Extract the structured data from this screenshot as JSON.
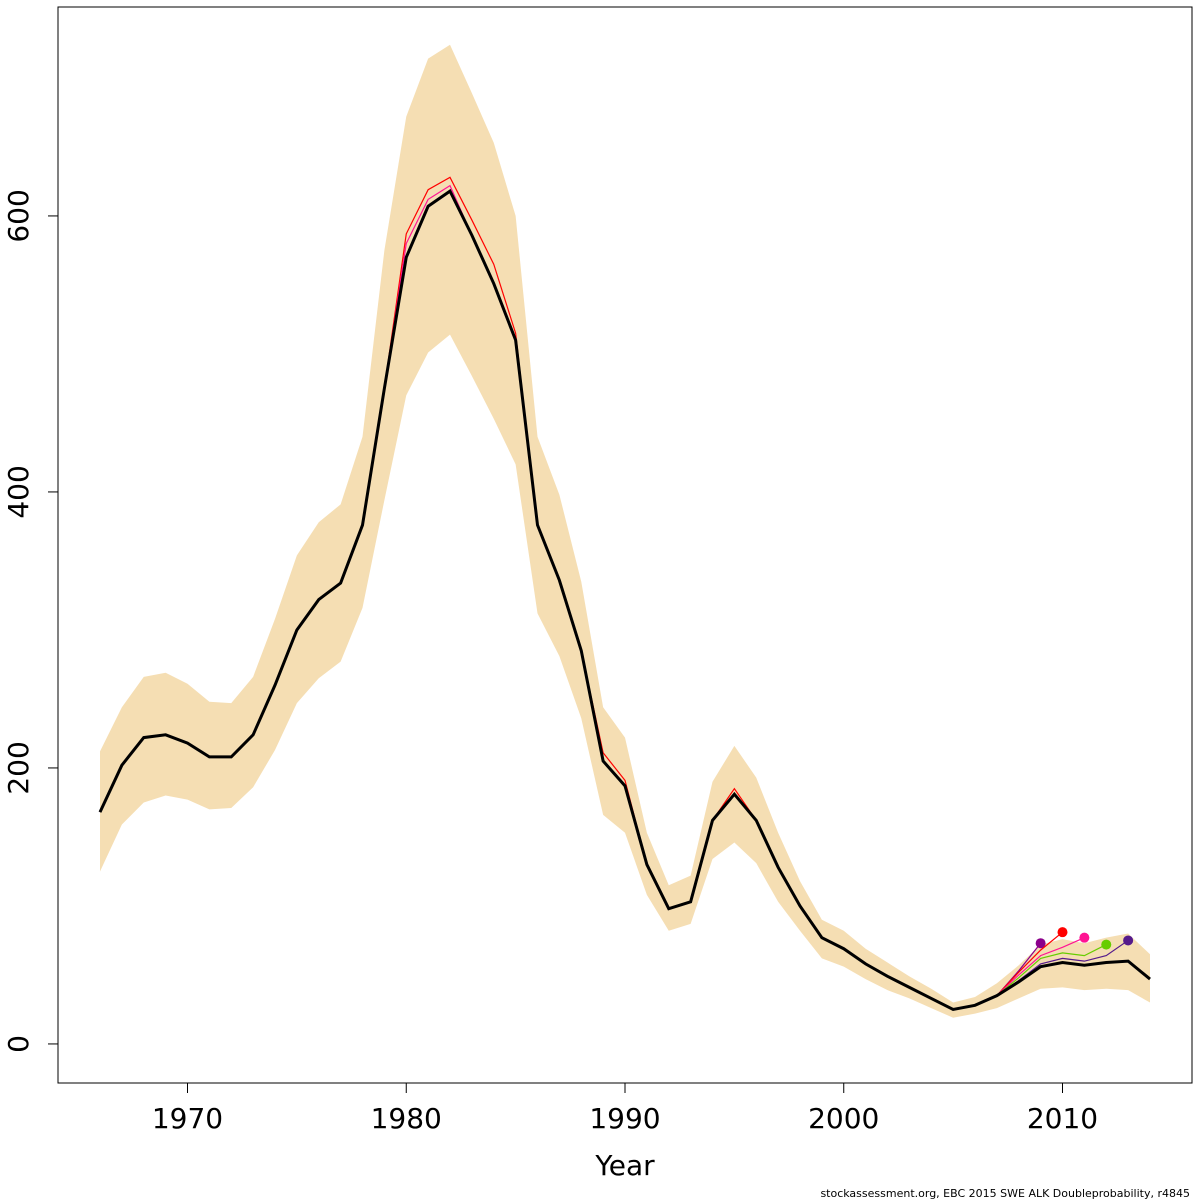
{
  "chart_data": {
    "type": "line",
    "xlabel": "Year",
    "footnote": "stockassessment.org, EBC 2015 SWE ALK Doubleprobability, r4845",
    "xlim": [
      1964.08,
      2015.92
    ],
    "ylim": [
      -28.3,
      751.4
    ],
    "xticks": [
      1970,
      1980,
      1990,
      2000,
      2010
    ],
    "yticks": [
      0,
      200,
      400,
      600
    ],
    "x": [
      1966,
      1967,
      1968,
      1969,
      1970,
      1971,
      1972,
      1973,
      1974,
      1975,
      1976,
      1977,
      1978,
      1979,
      1980,
      1981,
      1982,
      1983,
      1984,
      1985,
      1986,
      1987,
      1988,
      1989,
      1990,
      1991,
      1992,
      1993,
      1994,
      1995,
      1996,
      1997,
      1998,
      1999,
      2000,
      2001,
      2002,
      2003,
      2004,
      2005,
      2006,
      2007,
      2008,
      2009,
      2010,
      2011,
      2012,
      2013,
      2014
    ],
    "band": {
      "color": "#f5deb3",
      "upper": [
        212,
        244,
        266,
        269,
        261,
        248,
        247,
        266,
        308,
        354,
        378,
        391,
        440,
        575,
        672,
        714,
        724,
        689,
        653,
        600,
        440,
        398,
        335,
        244,
        222,
        153,
        115,
        122,
        190,
        216,
        193,
        153,
        118,
        90,
        82,
        69,
        59,
        49,
        40,
        30,
        34,
        44,
        57,
        72,
        76,
        73,
        77,
        80,
        65
      ],
      "lower": [
        125,
        159,
        175,
        180,
        177,
        170,
        171,
        186,
        213,
        247,
        265,
        277,
        316,
        394,
        470,
        501,
        514,
        484,
        453,
        420,
        312,
        281,
        236,
        166,
        153,
        108,
        82,
        87,
        134,
        146,
        131,
        103,
        82,
        62,
        56,
        47,
        39,
        33,
        26,
        19,
        22,
        26,
        33,
        40,
        41,
        39,
        40,
        39,
        30
      ]
    },
    "series": [
      {
        "color": "#8b008b",
        "values": [
          168,
          202,
          222,
          224,
          218,
          208,
          208,
          224,
          260,
          300,
          322,
          334,
          376,
          475,
          570,
          607,
          618,
          586,
          551,
          510,
          376,
          336,
          285,
          205,
          187,
          130,
          98,
          103,
          162,
          181,
          162,
          128,
          100,
          77,
          69,
          58,
          49,
          41,
          33,
          25,
          28,
          35,
          53,
          73,
          null,
          null,
          null,
          null,
          null
        ]
      },
      {
        "color": "#ff0000",
        "values": [
          168,
          202,
          222,
          224,
          218,
          208,
          208,
          224,
          260,
          300,
          322,
          334,
          376,
          475,
          587,
          619,
          628,
          597,
          565,
          515,
          376,
          336,
          285,
          211,
          191,
          130,
          98,
          103,
          162,
          185,
          162,
          128,
          100,
          77,
          69,
          58,
          49,
          41,
          33,
          25,
          28,
          35,
          52,
          68,
          81,
          null,
          null,
          null,
          null
        ]
      },
      {
        "color": "#ff1493",
        "values": [
          168,
          202,
          222,
          224,
          218,
          208,
          208,
          224,
          260,
          300,
          322,
          334,
          376,
          475,
          580,
          612,
          622,
          586,
          551,
          510,
          376,
          336,
          285,
          205,
          187,
          130,
          98,
          103,
          162,
          181,
          162,
          128,
          100,
          77,
          69,
          58,
          49,
          41,
          33,
          25,
          28,
          35,
          50,
          64,
          70,
          77,
          null,
          null,
          null
        ]
      },
      {
        "color": "#66cd00",
        "values": [
          168,
          202,
          222,
          224,
          218,
          208,
          208,
          224,
          260,
          300,
          322,
          334,
          376,
          475,
          570,
          607,
          618,
          586,
          551,
          510,
          376,
          336,
          285,
          205,
          187,
          130,
          98,
          103,
          162,
          181,
          162,
          128,
          100,
          77,
          69,
          58,
          49,
          41,
          33,
          25,
          28,
          35,
          48,
          62,
          66,
          64,
          72,
          null,
          null
        ]
      },
      {
        "color": "#551a8b",
        "values": [
          168,
          202,
          222,
          224,
          218,
          208,
          208,
          224,
          260,
          300,
          322,
          334,
          376,
          475,
          570,
          607,
          618,
          586,
          551,
          510,
          376,
          336,
          285,
          205,
          187,
          130,
          98,
          103,
          162,
          181,
          162,
          128,
          100,
          77,
          69,
          58,
          49,
          41,
          33,
          25,
          28,
          35,
          46,
          58,
          62,
          60,
          64,
          75,
          null
        ]
      },
      {
        "color": "#000000",
        "main": true,
        "values": [
          168,
          202,
          222,
          224,
          218,
          208,
          208,
          224,
          260,
          300,
          322,
          334,
          376,
          475,
          570,
          607,
          618,
          586,
          551,
          510,
          376,
          336,
          285,
          205,
          187,
          130,
          98,
          103,
          162,
          181,
          162,
          128,
          100,
          77,
          69,
          58,
          49,
          41,
          33,
          25,
          28,
          35,
          45,
          56,
          59,
          57,
          59,
          60,
          47
        ]
      }
    ]
  }
}
